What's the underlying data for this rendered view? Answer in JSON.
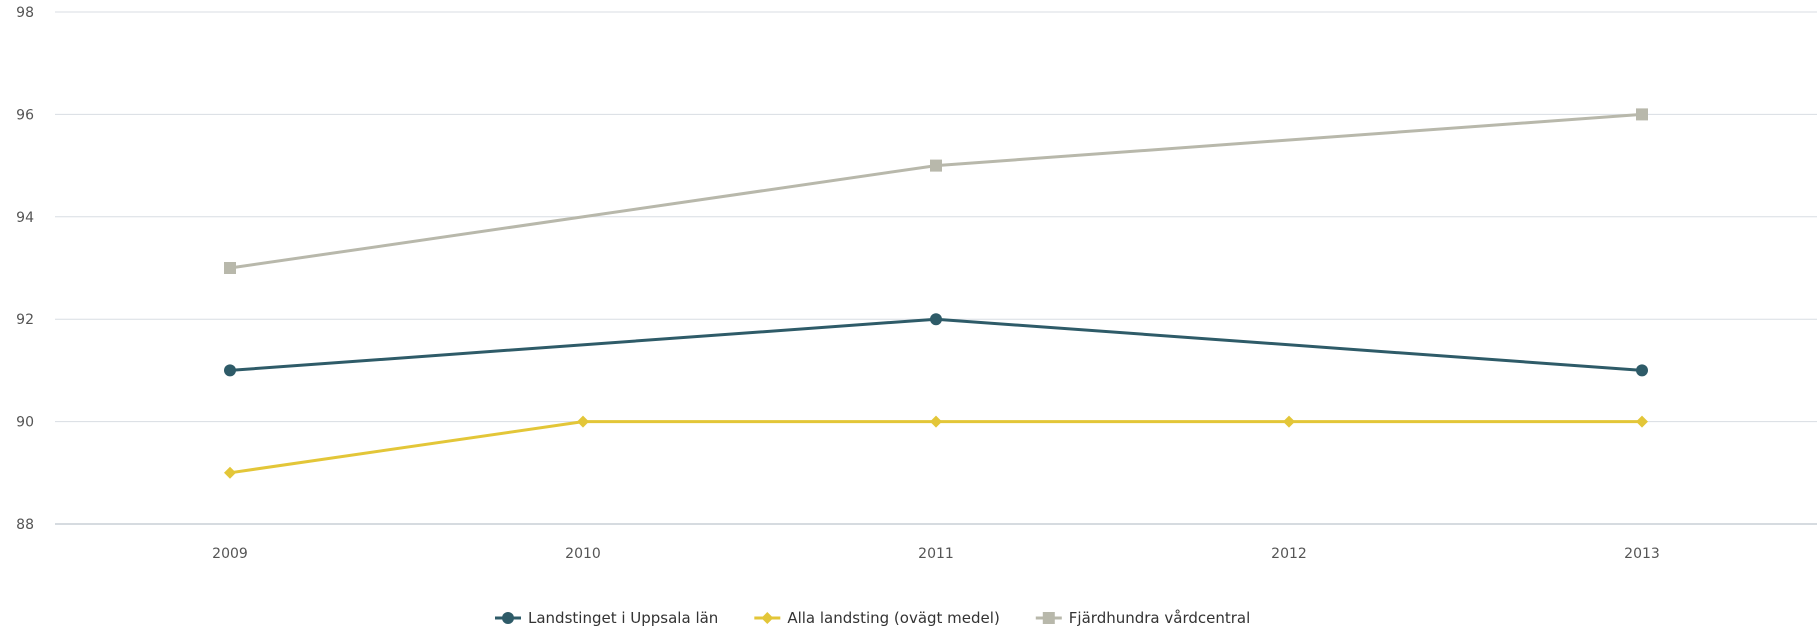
{
  "chart_data": {
    "type": "line",
    "x": [
      "2009",
      "2010",
      "2011",
      "2012",
      "2013"
    ],
    "ylim": [
      88,
      98
    ],
    "yticks": [
      88,
      90,
      92,
      94,
      96,
      98
    ],
    "grid": true,
    "legend_position": "bottom-center",
    "series": [
      {
        "name": "Landstinget i Uppsala län",
        "marker": "circle",
        "color": "#2e5b68",
        "points": [
          {
            "x": "2009",
            "y": 91
          },
          {
            "x": "2011",
            "y": 92
          },
          {
            "x": "2013",
            "y": 91
          }
        ]
      },
      {
        "name": "Alla landsting (ovägt medel)",
        "marker": "diamond",
        "color": "#e3c638",
        "points": [
          {
            "x": "2009",
            "y": 89
          },
          {
            "x": "2010",
            "y": 90
          },
          {
            "x": "2011",
            "y": 90
          },
          {
            "x": "2012",
            "y": 90
          },
          {
            "x": "2013",
            "y": 90
          }
        ]
      },
      {
        "name": "Fjärdhundra vårdcentral",
        "marker": "square",
        "color": "#b8b8ab",
        "points": [
          {
            "x": "2009",
            "y": 93
          },
          {
            "x": "2011",
            "y": 95
          },
          {
            "x": "2013",
            "y": 96
          }
        ]
      }
    ]
  }
}
